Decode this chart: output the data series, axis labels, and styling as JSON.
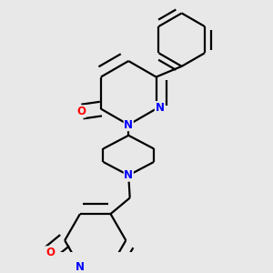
{
  "background_color": "#e8e8e8",
  "bond_color": "#000000",
  "atom_colors": {
    "N": "#0000ff",
    "O": "#ff0000",
    "C": "#000000"
  },
  "line_width": 1.6,
  "dbo": 0.015,
  "figsize": [
    3.0,
    3.0
  ],
  "dpi": 100
}
